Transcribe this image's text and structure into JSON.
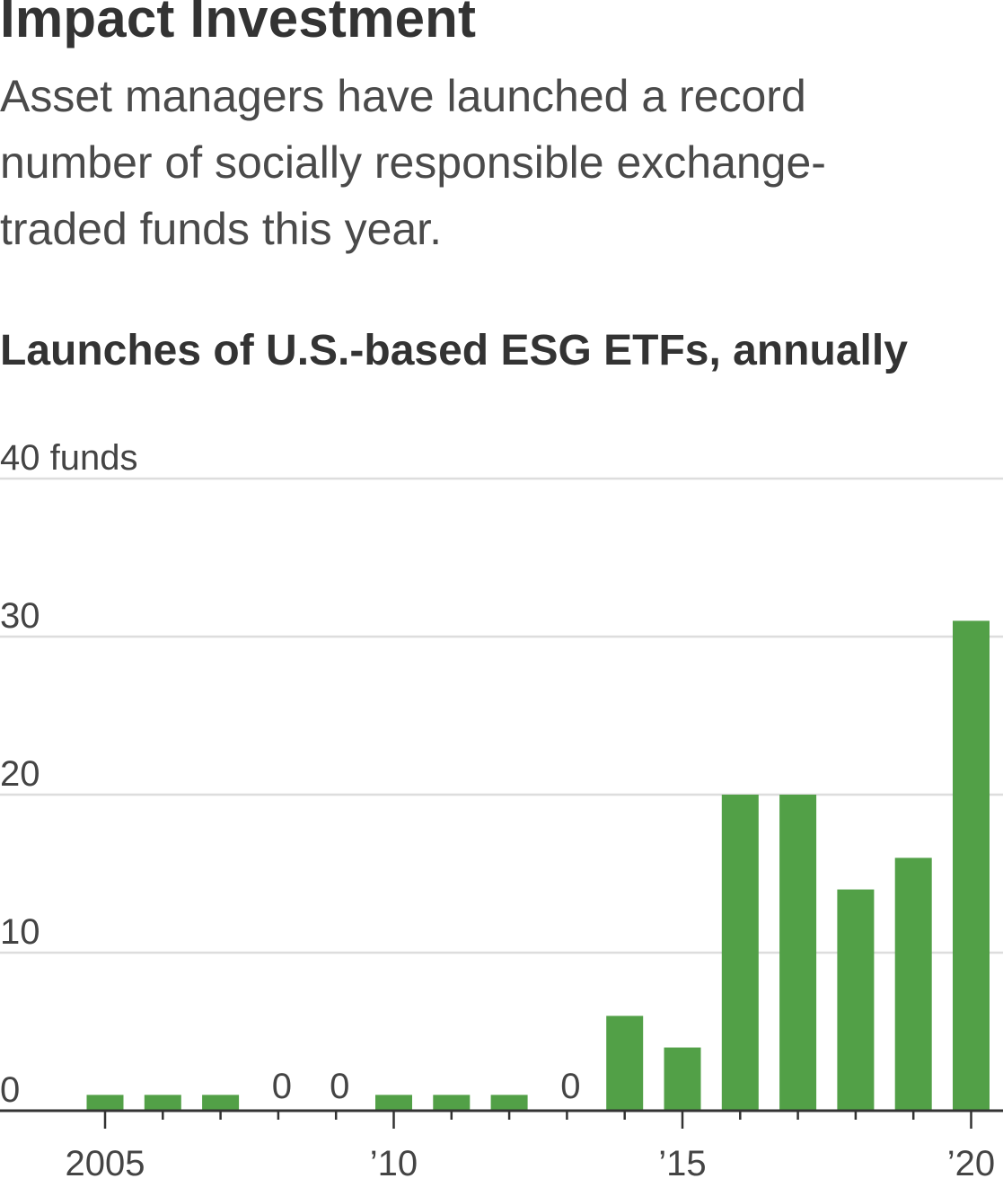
{
  "header": {
    "headline": "Impact Investment",
    "dek": "Asset managers have launched a record number of socially responsible exchange-traded funds this year."
  },
  "chart_data": {
    "type": "bar",
    "title": "Launches of U.S.-based ESG ETFs, annually",
    "xlabel": "",
    "ylabel": "funds",
    "x": [
      2005,
      2006,
      2007,
      2008,
      2009,
      2010,
      2011,
      2012,
      2013,
      2014,
      2015,
      2016,
      2017,
      2018,
      2019,
      2020
    ],
    "values": [
      1,
      1,
      1,
      0,
      0,
      1,
      1,
      1,
      0,
      6,
      4,
      20,
      20,
      14,
      16,
      31
    ],
    "zero_labels": [
      {
        "x": 2008,
        "label": "0"
      },
      {
        "x": 2009,
        "label": "0"
      },
      {
        "x": 2013,
        "label": "0"
      }
    ],
    "ylim": [
      0,
      40
    ],
    "y_ticks": [
      {
        "value": 40,
        "label": "40 funds"
      },
      {
        "value": 30,
        "label": "30"
      },
      {
        "value": 20,
        "label": "20"
      },
      {
        "value": 10,
        "label": "10"
      },
      {
        "value": 0,
        "label": "0"
      }
    ],
    "x_ticks": [
      {
        "value": 2005,
        "label": "2005"
      },
      {
        "value": 2010,
        "label": "’10"
      },
      {
        "value": 2015,
        "label": "’15"
      },
      {
        "value": 2020,
        "label": "’20"
      }
    ],
    "grid": true,
    "colors": {
      "bar": "#52a047",
      "grid": "#dddddd",
      "axis": "#333333",
      "tick_label": "#444444"
    }
  }
}
